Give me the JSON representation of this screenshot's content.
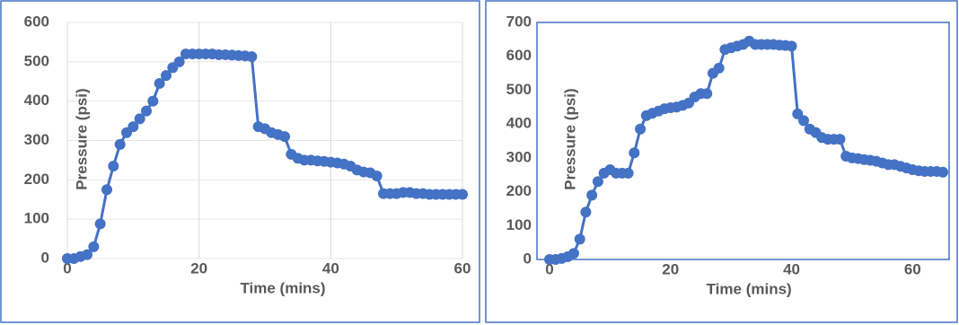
{
  "chart_data": [
    {
      "type": "line",
      "xlabel": "Time (mins)",
      "ylabel": "Pressure  (psi)",
      "x": [
        0,
        1,
        2,
        3,
        4,
        5,
        6,
        7,
        8,
        9,
        10,
        11,
        12,
        13,
        14,
        15,
        16,
        17,
        18,
        19,
        20,
        21,
        22,
        23,
        24,
        25,
        26,
        27,
        28,
        29,
        30,
        31,
        32,
        33,
        34,
        35,
        36,
        37,
        38,
        39,
        40,
        41,
        42,
        43,
        44,
        45,
        46,
        47,
        48,
        49,
        50,
        51,
        52,
        53,
        54,
        55,
        56,
        57,
        58,
        59,
        60
      ],
      "series": [
        {
          "name": "Pressure",
          "color": "#4472c4",
          "values": [
            0,
            0,
            5,
            10,
            30,
            88,
            175,
            235,
            290,
            320,
            335,
            355,
            375,
            400,
            445,
            465,
            485,
            500,
            520,
            520,
            520,
            520,
            520,
            518,
            518,
            517,
            516,
            515,
            513,
            335,
            330,
            320,
            315,
            310,
            265,
            255,
            250,
            250,
            248,
            247,
            245,
            243,
            240,
            235,
            225,
            220,
            218,
            210,
            165,
            165,
            165,
            168,
            168,
            165,
            165,
            163,
            163,
            163,
            163,
            163,
            163
          ]
        }
      ],
      "xlim": [
        0,
        60
      ],
      "xticks": [
        0,
        20,
        40,
        60
      ],
      "ylim": [
        0,
        600
      ],
      "yticks": [
        0,
        100,
        200,
        300,
        400,
        500,
        600
      ],
      "grid": true,
      "frame": false
    },
    {
      "type": "line",
      "xlabel": "Time (mins)",
      "ylabel": "Pressure  (psi)",
      "x": [
        0,
        1,
        2,
        3,
        4,
        5,
        6,
        7,
        8,
        9,
        10,
        11,
        12,
        13,
        14,
        15,
        16,
        17,
        18,
        19,
        20,
        21,
        22,
        23,
        24,
        25,
        26,
        27,
        28,
        29,
        30,
        31,
        32,
        33,
        34,
        35,
        36,
        37,
        38,
        39,
        40,
        41,
        42,
        43,
        44,
        45,
        46,
        47,
        48,
        49,
        50,
        51,
        52,
        53,
        54,
        55,
        56,
        57,
        58,
        59,
        60,
        61,
        62,
        63,
        64,
        65
      ],
      "series": [
        {
          "name": "Pressure",
          "color": "#4472c4",
          "values": [
            0,
            0,
            3,
            8,
            18,
            60,
            140,
            190,
            230,
            255,
            265,
            255,
            255,
            255,
            315,
            385,
            425,
            432,
            438,
            445,
            448,
            450,
            455,
            462,
            480,
            490,
            490,
            550,
            565,
            620,
            625,
            630,
            635,
            645,
            635,
            635,
            635,
            635,
            633,
            632,
            630,
            430,
            410,
            385,
            375,
            360,
            355,
            355,
            355,
            305,
            300,
            298,
            295,
            293,
            290,
            285,
            280,
            280,
            275,
            270,
            265,
            262,
            260,
            260,
            260,
            258
          ]
        }
      ],
      "xlim": [
        0,
        65
      ],
      "xticks": [
        0,
        20,
        40,
        60
      ],
      "ylim": [
        0,
        700
      ],
      "yticks": [
        0,
        100,
        200,
        300,
        400,
        500,
        600,
        700
      ],
      "grid": false,
      "frame": true
    }
  ]
}
